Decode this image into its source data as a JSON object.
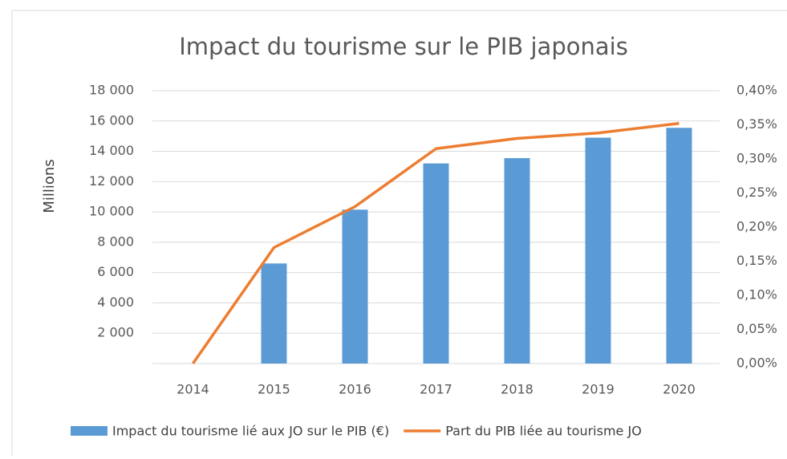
{
  "chart_data": {
    "type": "bar_line",
    "title": "Impact du tourisme sur le PIB japonais",
    "y_axis_label": "Millions",
    "categories": [
      "2014",
      "2015",
      "2016",
      "2017",
      "2018",
      "2019",
      "2020"
    ],
    "series": [
      {
        "name": "Impact du tourisme lié aux JO sur le PIB (€)",
        "type": "bar",
        "color": "#5b9bd5",
        "values": [
          null,
          6600,
          10150,
          13200,
          13550,
          14900,
          15550
        ]
      },
      {
        "name": "Part du PIB liée au tourisme JO",
        "type": "line",
        "color": "#ed7d31",
        "axis": "y2",
        "values": [
          0,
          0.17,
          0.23,
          0.315,
          0.33,
          0.338,
          0.352
        ]
      }
    ],
    "ylim": [
      0,
      18000
    ],
    "yticks": [
      {
        "value": 2000,
        "label": "2 000"
      },
      {
        "value": 4000,
        "label": "4 000"
      },
      {
        "value": 6000,
        "label": "6 000"
      },
      {
        "value": 8000,
        "label": "8 000"
      },
      {
        "value": 10000,
        "label": "10 000"
      },
      {
        "value": 12000,
        "label": "12 000"
      },
      {
        "value": 14000,
        "label": "14 000"
      },
      {
        "value": 16000,
        "label": "16 000"
      },
      {
        "value": 18000,
        "label": "18 000"
      }
    ],
    "y2lim": [
      0,
      0.4
    ],
    "y2ticks": [
      {
        "value": 0,
        "label": "0,00%"
      },
      {
        "value": 0.05,
        "label": "0,05%"
      },
      {
        "value": 0.1,
        "label": "0,10%"
      },
      {
        "value": 0.15,
        "label": "0,15%"
      },
      {
        "value": 0.2,
        "label": "0,20%"
      },
      {
        "value": 0.25,
        "label": "0,25%"
      },
      {
        "value": 0.3,
        "label": "0,30%"
      },
      {
        "value": 0.35,
        "label": "0,35%"
      },
      {
        "value": 0.4,
        "label": "0,40%"
      }
    ],
    "grid": true
  }
}
